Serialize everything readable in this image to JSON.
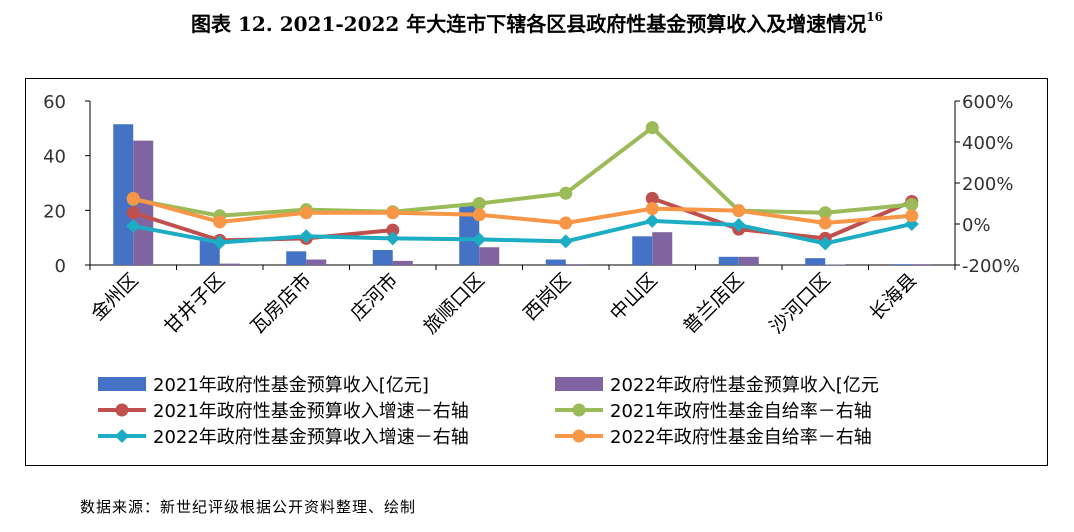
{
  "title": "图表 12. 2021-2022 年大连市下辖各区县政府性基金预算收入及增速情况",
  "title_sup": "16",
  "source": "数据来源：新世纪评级根据公开资料整理、绘制",
  "colors": {
    "bar2021": "#4472C4",
    "bar2022": "#8064A2",
    "growth2021": "#C0504D",
    "selfsuff2021": "#9BBB59",
    "growth2022": "#1CADC4",
    "selfsuff2022": "#F79646"
  },
  "chart_data": {
    "type": "bar+line",
    "categories": [
      "金州区",
      "甘井子区",
      "瓦房店市",
      "庄河市",
      "旅顺口区",
      "西岗区",
      "中山区",
      "普兰店区",
      "沙河口区",
      "长海县"
    ],
    "left_axis": {
      "ylim": [
        0,
        60
      ],
      "ticks": [
        "0",
        "20",
        "40",
        "60"
      ]
    },
    "right_axis": {
      "ylim": [
        -200,
        600
      ],
      "ticks": [
        "-200%",
        "0%",
        "200%",
        "400%",
        "600%"
      ]
    },
    "bar_series": [
      {
        "name": "2021年政府性基金预算收入[亿元]",
        "values": [
          51.5,
          9.5,
          5.0,
          5.5,
          22.5,
          2.0,
          10.5,
          3.0,
          2.5,
          0.3
        ]
      },
      {
        "name": "2022年政府性基金预算收入[亿元",
        "values": [
          45.5,
          0.5,
          2.0,
          1.5,
          6.5,
          0.3,
          12.0,
          3.0,
          0.2,
          0.3
        ]
      }
    ],
    "line_series": [
      {
        "name": "2021年政府性基金预算收入增速－右轴",
        "marker": "circle",
        "values": [
          55,
          -80,
          -70,
          -30,
          null,
          null,
          125,
          -25,
          -70,
          110
        ]
      },
      {
        "name": "2021年政府性基金自给率－右轴",
        "marker": "circle",
        "values": [
          120,
          40,
          70,
          60,
          100,
          150,
          470,
          65,
          55,
          95
        ]
      },
      {
        "name": "2022年政府性基金预算收入增速－右轴",
        "marker": "diamond",
        "values": [
          -10,
          -90,
          -60,
          -70,
          -75,
          -85,
          15,
          -5,
          -95,
          0
        ]
      },
      {
        "name": "2022年政府性基金自给率－右轴",
        "marker": "circle",
        "values": [
          125,
          10,
          55,
          55,
          45,
          5,
          75,
          65,
          5,
          40
        ]
      }
    ]
  }
}
